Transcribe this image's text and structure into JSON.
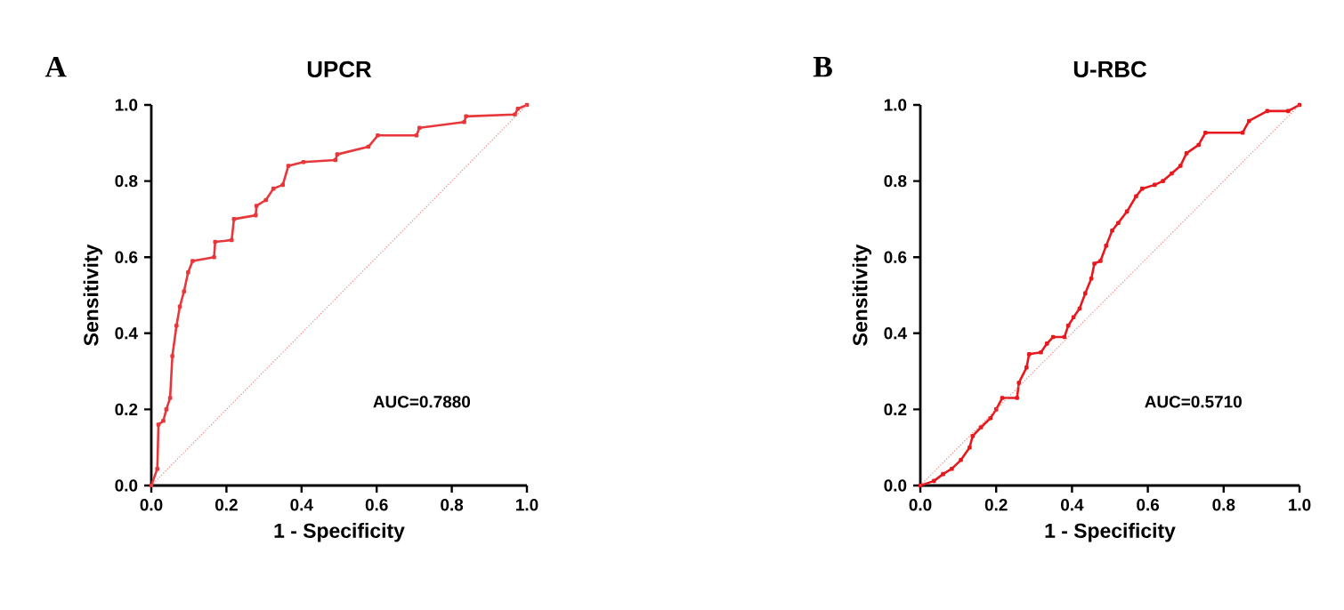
{
  "chart_data": [
    {
      "type": "line",
      "title": "UPCR",
      "xlabel": "1 - Specificity",
      "ylabel": "Sensitivity",
      "annotations": [
        "A",
        "AUC=0.7880"
      ],
      "xlim": [
        0,
        1
      ],
      "ylim": [
        0,
        1
      ],
      "xticks": [
        {
          "value": 0,
          "label": "0.0"
        },
        {
          "value": 0.2,
          "label": "0.2"
        },
        {
          "value": 0.4,
          "label": "0.4"
        },
        {
          "value": 0.6,
          "label": "0.6"
        },
        {
          "value": 0.8,
          "label": "0.8"
        },
        {
          "value": 1,
          "label": "1.0"
        }
      ],
      "yticks": [
        {
          "value": 0,
          "label": "0.0"
        },
        {
          "value": 0.2,
          "label": "0.2"
        },
        {
          "value": 0.4,
          "label": "0.4"
        },
        {
          "value": 0.6,
          "label": "0.6"
        },
        {
          "value": 0.8,
          "label": "0.8"
        },
        {
          "value": 1,
          "label": "1.0"
        }
      ],
      "grid": false,
      "legend": false,
      "series": [
        {
          "color": "#e8373a",
          "marker": "square",
          "line_style": "solid",
          "x": [
            0,
            0.016,
            0.019,
            0.032,
            0.04,
            0.05,
            0.056,
            0.067,
            0.076,
            0.087,
            0.098,
            0.11,
            0.167,
            0.17,
            0.214,
            0.22,
            0.278,
            0.28,
            0.305,
            0.325,
            0.35,
            0.365,
            0.405,
            0.49,
            0.495,
            0.578,
            0.603,
            0.706,
            0.714,
            0.833,
            0.838,
            0.968,
            0.976,
            1
          ],
          "values": [
            0,
            0.044,
            0.16,
            0.17,
            0.2,
            0.23,
            0.34,
            0.42,
            0.47,
            0.51,
            0.56,
            0.59,
            0.6,
            0.64,
            0.645,
            0.7,
            0.71,
            0.735,
            0.75,
            0.78,
            0.79,
            0.84,
            0.85,
            0.855,
            0.87,
            0.89,
            0.92,
            0.92,
            0.94,
            0.955,
            0.97,
            0.975,
            0.99,
            1
          ]
        },
        {
          "color": "#f08080",
          "marker": "none",
          "line_style": "dotted",
          "x": [
            0,
            1
          ],
          "values": [
            0,
            1
          ]
        }
      ]
    },
    {
      "type": "line",
      "title": "U-RBC",
      "xlabel": "1 - Specificity",
      "ylabel": "Sensitivity",
      "annotations": [
        "B",
        "AUC=0.5710"
      ],
      "xlim": [
        0,
        1
      ],
      "ylim": [
        0,
        1
      ],
      "xticks": [
        {
          "value": 0,
          "label": "0.0"
        },
        {
          "value": 0.2,
          "label": "0.2"
        },
        {
          "value": 0.4,
          "label": "0.4"
        },
        {
          "value": 0.6,
          "label": "0.6"
        },
        {
          "value": 0.8,
          "label": "0.8"
        },
        {
          "value": 1,
          "label": "1.0"
        }
      ],
      "yticks": [
        {
          "value": 0,
          "label": "0.0"
        },
        {
          "value": 0.2,
          "label": "0.2"
        },
        {
          "value": 0.4,
          "label": "0.4"
        },
        {
          "value": 0.6,
          "label": "0.6"
        },
        {
          "value": 0.8,
          "label": "0.8"
        },
        {
          "value": 1,
          "label": "1.0"
        }
      ],
      "grid": false,
      "legend": false,
      "series": [
        {
          "color": "#e8191e",
          "marker": "square",
          "line_style": "solid",
          "x": [
            0,
            0.036,
            0.06,
            0.083,
            0.107,
            0.13,
            0.138,
            0.16,
            0.185,
            0.2,
            0.216,
            0.255,
            0.26,
            0.28,
            0.287,
            0.318,
            0.334,
            0.35,
            0.38,
            0.39,
            0.404,
            0.42,
            0.435,
            0.451,
            0.459,
            0.475,
            0.49,
            0.506,
            0.522,
            0.545,
            0.569,
            0.585,
            0.618,
            0.64,
            0.663,
            0.686,
            0.702,
            0.734,
            0.752,
            0.85,
            0.867,
            0.915,
            0.97,
            1
          ],
          "values": [
            0,
            0.012,
            0.03,
            0.044,
            0.067,
            0.1,
            0.13,
            0.153,
            0.177,
            0.2,
            0.23,
            0.23,
            0.27,
            0.31,
            0.345,
            0.35,
            0.373,
            0.39,
            0.39,
            0.42,
            0.442,
            0.465,
            0.505,
            0.544,
            0.583,
            0.59,
            0.63,
            0.67,
            0.69,
            0.72,
            0.76,
            0.78,
            0.79,
            0.8,
            0.82,
            0.84,
            0.873,
            0.895,
            0.927,
            0.927,
            0.958,
            0.984,
            0.984,
            1
          ]
        },
        {
          "color": "#f08080",
          "marker": "none",
          "line_style": "dotted",
          "x": [
            0,
            1
          ],
          "values": [
            0,
            1
          ]
        }
      ]
    }
  ]
}
